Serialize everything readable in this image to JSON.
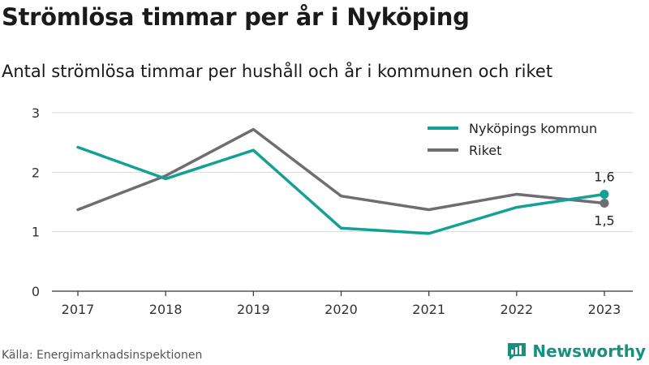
{
  "header": {
    "title": "Strömlösa timmar per år i Nyköping",
    "subtitle": "Antal strömlösa timmar per hushåll och år i kommunen och riket"
  },
  "footer": {
    "source": "Källa: Energimarknadsinspektionen",
    "brand": "Newsworthy",
    "brand_icon": "bar-chart-logo-icon"
  },
  "colors": {
    "nykoping": "#14a094",
    "riket": "#6e6d72",
    "grid": "#d9d9d9",
    "axis": "#333333",
    "brand": "#16907f"
  },
  "chart_data": {
    "type": "line",
    "title": "Strömlösa timmar per år i Nyköping",
    "subtitle": "Antal strömlösa timmar per hushåll och år i kommunen och riket",
    "xlabel": "",
    "ylabel": "",
    "categories": [
      "2017",
      "2018",
      "2019",
      "2020",
      "2021",
      "2022",
      "2023"
    ],
    "ylim": [
      0,
      3
    ],
    "yticks": [
      0,
      1,
      2,
      3
    ],
    "grid": true,
    "legend": "top-right",
    "series": [
      {
        "name": "Nyköpings kommun",
        "values": [
          2.42,
          1.89,
          2.37,
          1.06,
          0.97,
          1.41,
          1.63
        ],
        "end_label": "1,6"
      },
      {
        "name": "Riket",
        "values": [
          1.37,
          1.94,
          2.72,
          1.6,
          1.37,
          1.63,
          1.48
        ],
        "end_label": "1,5"
      }
    ]
  }
}
